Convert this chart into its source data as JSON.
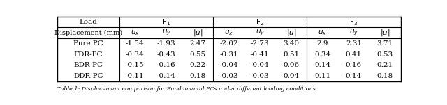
{
  "load_label": "Load",
  "disp_label": "Displacement (mm)",
  "col_labels": [
    "$u_x$",
    "$u_y$",
    "$|u|$"
  ],
  "row_labels": [
    "Pure PC",
    "FDR-PC",
    "BDR-PC",
    "DDR-PC"
  ],
  "data": [
    [
      "-1.54",
      "-1.93",
      "2.47",
      "-2.02",
      "-2.73",
      "3.40",
      "2.9",
      "2.31",
      "3.71"
    ],
    [
      "-0.34",
      "-0.43",
      "0.55",
      "-0.31",
      "-0.41",
      "0.51",
      "0.34",
      "0.41",
      "0.53"
    ],
    [
      "-0.15",
      "-0.16",
      "0.22",
      "-0.04",
      "-0.04",
      "0.06",
      "0.14",
      "0.16",
      "0.21"
    ],
    [
      "-0.11",
      "-0.14",
      "0.18",
      "-0.03",
      "-0.03",
      "0.04",
      "0.11",
      "0.14",
      "0.18"
    ]
  ],
  "bg_color": "#ffffff",
  "line_color": "#000000",
  "font_size": 7.5,
  "caption_text": "Table 1: Displacement comparison for Fundamental PCs under different loading conditions"
}
